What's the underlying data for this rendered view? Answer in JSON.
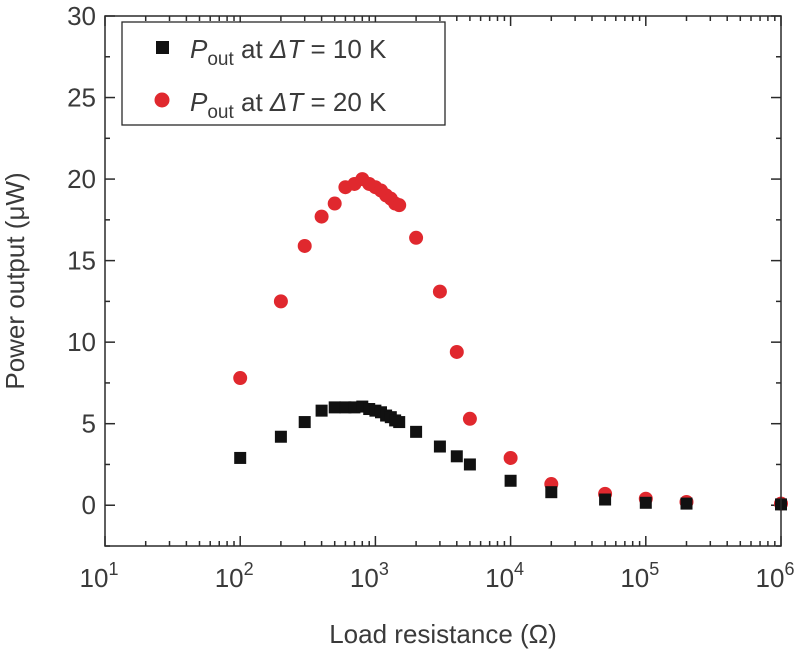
{
  "chart_data": {
    "type": "scatter",
    "title": "",
    "xlabel": "Load resistance (Ω)",
    "ylabel": "Power output (μW)",
    "xscale": "log",
    "xlim": [
      10,
      1000000
    ],
    "ylim": [
      -2.5,
      30
    ],
    "grid": false,
    "legend_position": "top-left",
    "x_ticks": [
      {
        "value": 10,
        "base": "10",
        "exp": "1"
      },
      {
        "value": 100,
        "base": "10",
        "exp": "2"
      },
      {
        "value": 1000,
        "base": "10",
        "exp": "3"
      },
      {
        "value": 10000,
        "base": "10",
        "exp": "4"
      },
      {
        "value": 100000,
        "base": "10",
        "exp": "5"
      },
      {
        "value": 1000000,
        "base": "10",
        "exp": "6"
      }
    ],
    "y_ticks": [
      "0",
      "5",
      "10",
      "15",
      "20",
      "25",
      "30"
    ],
    "series": [
      {
        "legend_parts": [
          "P",
          "out",
          " at ",
          "ΔT",
          " = 10 K"
        ],
        "marker": "square",
        "color": "#111111",
        "points": [
          [
            100,
            2.9
          ],
          [
            200,
            4.2
          ],
          [
            300,
            5.1
          ],
          [
            400,
            5.8
          ],
          [
            500,
            6.0
          ],
          [
            600,
            6.0
          ],
          [
            700,
            6.0
          ],
          [
            800,
            6.05
          ],
          [
            900,
            5.9
          ],
          [
            1000,
            5.8
          ],
          [
            1100,
            5.7
          ],
          [
            1200,
            5.5
          ],
          [
            1300,
            5.4
          ],
          [
            1400,
            5.2
          ],
          [
            1500,
            5.1
          ],
          [
            2000,
            4.5
          ],
          [
            3000,
            3.6
          ],
          [
            4000,
            3.0
          ],
          [
            5000,
            2.5
          ],
          [
            10000,
            1.5
          ],
          [
            20000,
            0.8
          ],
          [
            50000,
            0.35
          ],
          [
            100000,
            0.15
          ],
          [
            200000,
            0.1
          ],
          [
            1000000,
            0.05
          ]
        ]
      },
      {
        "legend_parts": [
          "P",
          "out",
          " at ",
          "ΔT",
          " = 20 K"
        ],
        "marker": "circle",
        "color": "#e0282e",
        "points": [
          [
            100,
            7.8
          ],
          [
            200,
            12.5
          ],
          [
            300,
            15.9
          ],
          [
            400,
            17.7
          ],
          [
            500,
            18.5
          ],
          [
            600,
            19.5
          ],
          [
            700,
            19.7
          ],
          [
            800,
            20.0
          ],
          [
            900,
            19.7
          ],
          [
            1000,
            19.5
          ],
          [
            1100,
            19.3
          ],
          [
            1200,
            19.0
          ],
          [
            1300,
            18.8
          ],
          [
            1400,
            18.5
          ],
          [
            1500,
            18.4
          ],
          [
            2000,
            16.4
          ],
          [
            3000,
            13.1
          ],
          [
            4000,
            9.4
          ],
          [
            5000,
            5.3
          ],
          [
            10000,
            2.9
          ],
          [
            20000,
            1.3
          ],
          [
            50000,
            0.7
          ],
          [
            100000,
            0.4
          ],
          [
            200000,
            0.2
          ],
          [
            1000000,
            0.1
          ]
        ]
      }
    ]
  }
}
